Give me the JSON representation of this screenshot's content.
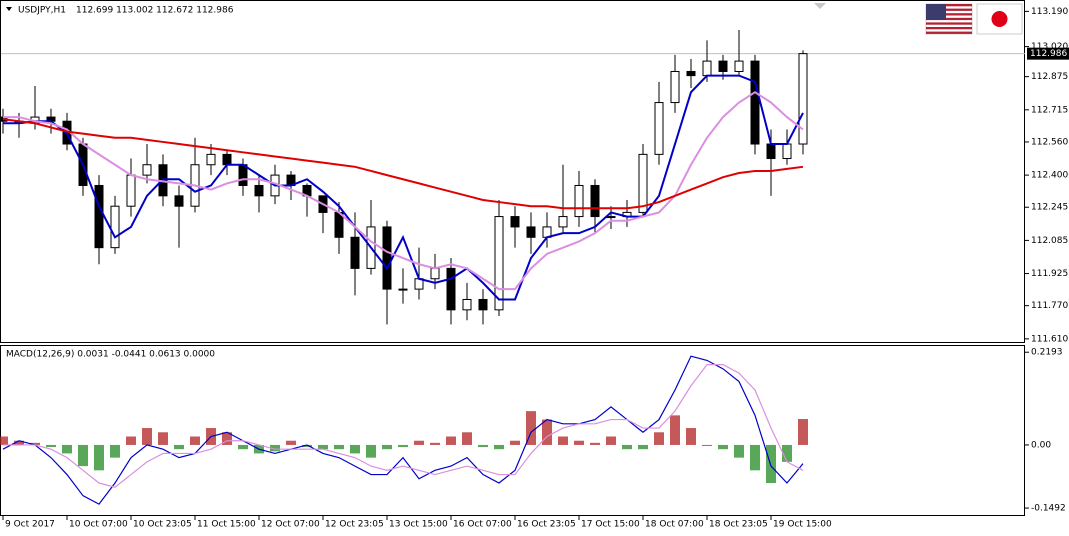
{
  "chart_data": [
    {
      "type": "candlestick",
      "symbol": "USDJPY,H1",
      "ohlc_header": "112.699 113.002 112.672 112.986",
      "categories": [
        "9 Oct 2017",
        null,
        null,
        null,
        "10 Oct 07:00",
        null,
        null,
        null,
        "10 Oct 23:05",
        null,
        null,
        null,
        "11 Oct 15:00",
        null,
        null,
        null,
        "12 Oct 07:00",
        null,
        null,
        null,
        "12 Oct 23:05",
        null,
        null,
        null,
        "13 Oct 15:00",
        null,
        null,
        null,
        "16 Oct 07:00",
        null,
        null,
        null,
        "16 Oct 23:05",
        null,
        null,
        null,
        "17 Oct 15:00",
        null,
        null,
        null,
        "18 Oct 07:00",
        null,
        null,
        null,
        "18 Oct 23:05",
        null,
        null,
        null,
        "19 Oct 15:00",
        null,
        null
      ],
      "open": [
        112.68,
        112.66,
        112.65,
        112.68,
        112.66,
        112.55,
        112.35,
        112.05,
        112.25,
        112.4,
        112.45,
        112.3,
        112.25,
        112.45,
        112.5,
        112.45,
        112.35,
        112.3,
        112.4,
        112.35,
        112.3,
        112.22,
        112.1,
        111.95,
        112.15,
        111.85,
        111.85,
        111.9,
        111.95,
        111.75,
        111.8,
        111.75,
        112.2,
        112.15,
        112.1,
        112.15,
        112.2,
        112.35,
        112.2,
        112.2,
        112.22,
        112.5,
        112.75,
        112.9,
        112.88,
        112.95,
        112.9,
        112.95,
        112.55,
        112.48,
        112.55
      ],
      "high": [
        112.72,
        112.7,
        112.83,
        112.72,
        112.7,
        112.58,
        112.4,
        112.3,
        112.48,
        112.55,
        112.5,
        112.35,
        112.58,
        112.55,
        112.52,
        112.48,
        112.4,
        112.45,
        112.42,
        112.36,
        112.3,
        112.27,
        112.22,
        112.28,
        112.18,
        111.95,
        112.05,
        112.02,
        112.0,
        111.88,
        111.85,
        112.28,
        112.25,
        112.22,
        112.22,
        112.45,
        112.42,
        112.38,
        112.25,
        112.28,
        112.55,
        112.85,
        112.98,
        112.96,
        113.05,
        112.98,
        113.1,
        112.98,
        112.62,
        112.62,
        113.002
      ],
      "low": [
        112.6,
        112.58,
        112.62,
        112.6,
        112.52,
        112.3,
        111.97,
        112.02,
        112.2,
        112.36,
        112.25,
        112.05,
        112.22,
        112.4,
        112.4,
        112.3,
        112.22,
        112.26,
        112.28,
        112.2,
        112.12,
        112.02,
        111.82,
        111.92,
        111.68,
        111.78,
        111.8,
        111.85,
        111.68,
        111.7,
        111.68,
        111.72,
        112.05,
        112.02,
        112.05,
        112.12,
        112.15,
        112.12,
        112.14,
        112.15,
        112.2,
        112.45,
        112.7,
        112.82,
        112.85,
        112.86,
        112.88,
        112.5,
        112.3,
        112.45,
        112.5
      ],
      "close": [
        112.66,
        112.65,
        112.68,
        112.66,
        112.55,
        112.35,
        112.05,
        112.25,
        112.4,
        112.45,
        112.3,
        112.25,
        112.45,
        112.5,
        112.45,
        112.35,
        112.3,
        112.4,
        112.35,
        112.3,
        112.22,
        112.1,
        111.95,
        112.15,
        111.85,
        111.85,
        111.9,
        111.95,
        111.75,
        111.8,
        111.75,
        112.2,
        112.15,
        112.1,
        112.15,
        112.2,
        112.35,
        112.2,
        112.2,
        112.22,
        112.5,
        112.75,
        112.9,
        112.88,
        112.95,
        112.9,
        112.95,
        112.55,
        112.48,
        112.55,
        112.986
      ],
      "overlays": [
        {
          "color": "#0000c8",
          "values": [
            112.65,
            112.65,
            112.66,
            112.66,
            112.6,
            112.45,
            112.25,
            112.1,
            112.15,
            112.3,
            112.38,
            112.38,
            112.32,
            112.35,
            112.45,
            112.45,
            112.4,
            112.35,
            112.35,
            112.38,
            112.32,
            112.25,
            112.15,
            112.05,
            111.95,
            112.1,
            111.9,
            111.88,
            111.9,
            111.95,
            111.88,
            111.8,
            111.8,
            112.0,
            112.1,
            112.12,
            112.12,
            112.15,
            112.22,
            112.2,
            112.2,
            112.3,
            112.55,
            112.8,
            112.88,
            112.88,
            112.88,
            112.85,
            112.55,
            112.55,
            112.7
          ]
        },
        {
          "color": "#da8fe0",
          "values": [
            112.68,
            112.68,
            112.66,
            112.65,
            112.62,
            112.55,
            112.5,
            112.45,
            112.4,
            112.38,
            112.37,
            112.36,
            112.35,
            112.33,
            112.36,
            112.38,
            112.38,
            112.36,
            112.33,
            112.3,
            112.26,
            112.22,
            112.15,
            112.08,
            112.03,
            112.0,
            111.97,
            111.95,
            111.97,
            111.95,
            111.9,
            111.85,
            111.85,
            111.95,
            112.02,
            112.05,
            112.08,
            112.12,
            112.18,
            112.18,
            112.2,
            112.22,
            112.3,
            112.45,
            112.58,
            112.68,
            112.75,
            112.8,
            112.75,
            112.68,
            112.62
          ]
        },
        {
          "color": "#e00000",
          "values": [
            112.67,
            112.66,
            112.65,
            112.63,
            112.61,
            112.6,
            112.59,
            112.58,
            112.58,
            112.57,
            112.56,
            112.55,
            112.54,
            112.53,
            112.52,
            112.51,
            112.5,
            112.49,
            112.48,
            112.47,
            112.46,
            112.45,
            112.44,
            112.42,
            112.4,
            112.38,
            112.36,
            112.34,
            112.32,
            112.3,
            112.28,
            112.27,
            112.26,
            112.25,
            112.25,
            112.24,
            112.24,
            112.24,
            112.24,
            112.24,
            112.25,
            112.27,
            112.3,
            112.33,
            112.36,
            112.39,
            112.41,
            112.42,
            112.42,
            112.43,
            112.44
          ]
        }
      ],
      "last_price": 112.986,
      "ylim": [
        111.59,
        113.24
      ],
      "yticks": [
        {
          "value": 113.19,
          "label": "113.190"
        },
        {
          "value": 113.02,
          "label": "113.020"
        },
        112.875,
        112.715,
        {
          "value": 112.56,
          "label": "112.560"
        },
        {
          "value": 112.4,
          "label": "112.400"
        },
        112.245,
        112.085,
        111.925,
        {
          "value": 111.77,
          "label": "111.770"
        },
        {
          "value": 111.61,
          "label": "111.610"
        }
      ]
    },
    {
      "type": "macd",
      "title": "MACD(12,26,9) 0.0031 -0.0441 0.0613 0.0000",
      "histogram": {
        "color_up": "#b22222",
        "color_down": "#228b22",
        "values": [
          0.02,
          0.01,
          0.005,
          -0.005,
          -0.02,
          -0.05,
          -0.06,
          -0.03,
          0.02,
          0.04,
          0.03,
          -0.01,
          0.02,
          0.04,
          0.03,
          -0.01,
          -0.02,
          -0.015,
          0.01,
          -0.005,
          -0.01,
          -0.01,
          -0.02,
          -0.03,
          -0.01,
          -0.005,
          0.01,
          0.005,
          0.02,
          0.03,
          -0.005,
          -0.01,
          0.01,
          0.08,
          0.06,
          0.02,
          0.01,
          0.005,
          0.02,
          -0.01,
          -0.01,
          0.03,
          0.07,
          0.04,
          0.0,
          -0.01,
          -0.03,
          -0.06,
          -0.09,
          -0.04,
          0.0613
        ]
      },
      "lines": [
        {
          "color": "#0000c8",
          "values": [
            -0.01,
            0.01,
            0.0,
            -0.03,
            -0.07,
            -0.12,
            -0.14,
            -0.09,
            -0.03,
            0.0,
            -0.01,
            -0.03,
            -0.02,
            0.02,
            0.03,
            0.01,
            -0.01,
            -0.02,
            -0.01,
            0.0,
            -0.02,
            -0.03,
            -0.05,
            -0.07,
            -0.07,
            -0.03,
            -0.08,
            -0.06,
            -0.05,
            -0.03,
            -0.07,
            -0.09,
            -0.06,
            0.03,
            0.06,
            0.05,
            0.05,
            0.06,
            0.09,
            0.06,
            0.03,
            0.06,
            0.13,
            0.21,
            0.2,
            0.18,
            0.15,
            0.07,
            -0.05,
            -0.09,
            -0.0441
          ]
        },
        {
          "color": "#da8fe0",
          "values": [
            0.0,
            0.0,
            0.0,
            -0.01,
            -0.03,
            -0.06,
            -0.09,
            -0.1,
            -0.07,
            -0.04,
            -0.02,
            -0.02,
            -0.02,
            -0.01,
            0.01,
            0.01,
            0.0,
            -0.01,
            -0.01,
            -0.01,
            -0.01,
            -0.02,
            -0.03,
            -0.05,
            -0.06,
            -0.05,
            -0.06,
            -0.07,
            -0.06,
            -0.05,
            -0.06,
            -0.07,
            -0.07,
            -0.02,
            0.02,
            0.04,
            0.05,
            0.05,
            0.06,
            0.06,
            0.04,
            0.04,
            0.08,
            0.14,
            0.19,
            0.19,
            0.17,
            0.13,
            0.04,
            -0.04,
            -0.06
          ]
        }
      ],
      "ylim": [
        -0.168,
        0.234
      ],
      "yticks": [
        0.2193,
        {
          "value": 0,
          "label": "0.00"
        },
        -0.1492
      ]
    }
  ]
}
